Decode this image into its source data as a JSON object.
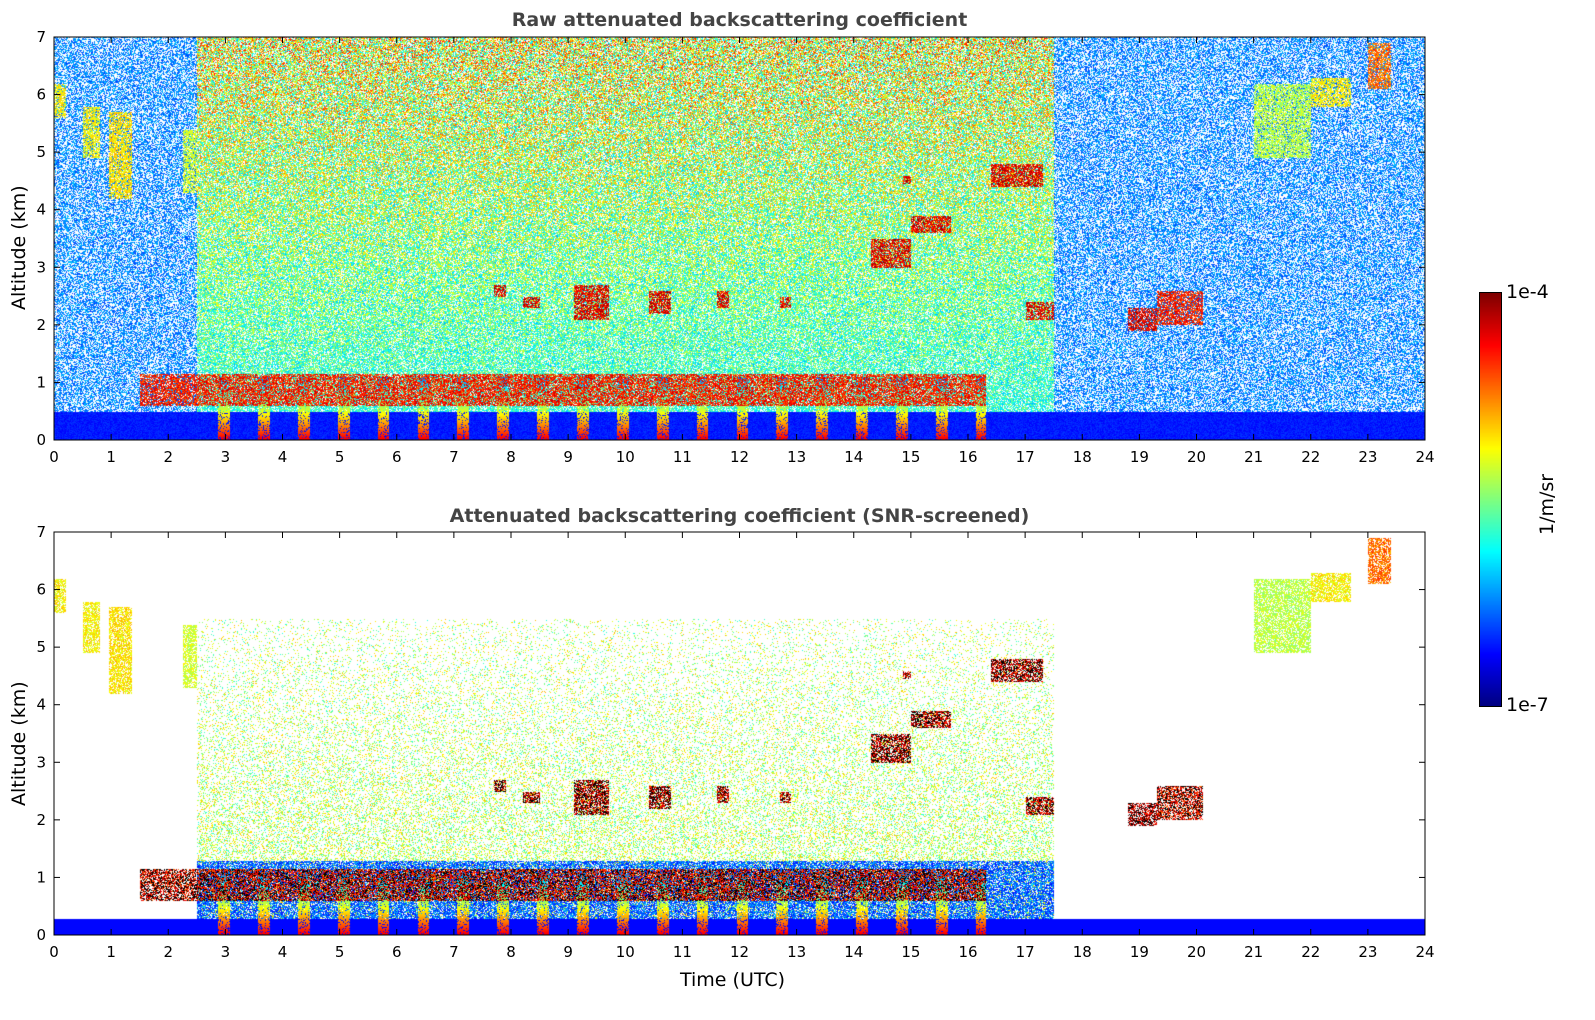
{
  "chart_data": [
    {
      "type": "heatmap",
      "title": "Raw attenuated backscattering coefficient",
      "xlabel": "",
      "ylabel": "Altitude (km)",
      "xlim": [
        0,
        24
      ],
      "ylim": [
        0,
        7
      ],
      "xticks": [
        0,
        1,
        2,
        3,
        4,
        5,
        6,
        7,
        8,
        9,
        10,
        11,
        12,
        13,
        14,
        15,
        16,
        17,
        18,
        19,
        20,
        21,
        22,
        23,
        24
      ],
      "yticks": [
        0,
        1,
        2,
        3,
        4,
        5,
        6,
        7
      ],
      "screened": false
    },
    {
      "type": "heatmap",
      "title": "Attenuated backscattering coefficient (SNR-screened)",
      "xlabel": "Time (UTC)",
      "ylabel": "Altitude (km)",
      "xlim": [
        0,
        24
      ],
      "ylim": [
        0,
        7
      ],
      "xticks": [
        0,
        1,
        2,
        3,
        4,
        5,
        6,
        7,
        8,
        9,
        10,
        11,
        12,
        13,
        14,
        15,
        16,
        17,
        18,
        19,
        20,
        21,
        22,
        23,
        24
      ],
      "yticks": [
        0,
        1,
        2,
        3,
        4,
        5,
        6,
        7
      ],
      "screened": true
    }
  ],
  "cloud_features": [
    {
      "name": "boundary-layer-clouds",
      "t0": 1.5,
      "t1": 16.3,
      "alt0": 0.6,
      "alt1": 1.15,
      "level": 0.95
    },
    {
      "name": "cirrus-early-1",
      "t0": 0.0,
      "t1": 0.2,
      "alt0": 5.6,
      "alt1": 6.2,
      "level": 0.7
    },
    {
      "name": "cirrus-early-2",
      "t0": 0.5,
      "t1": 0.8,
      "alt0": 4.9,
      "alt1": 5.8,
      "level": 0.7
    },
    {
      "name": "cirrus-early-3",
      "t0": 0.95,
      "t1": 1.35,
      "alt0": 4.2,
      "alt1": 5.7,
      "level": 0.72
    },
    {
      "name": "cirrus-early-4",
      "t0": 2.25,
      "t1": 2.5,
      "alt0": 4.3,
      "alt1": 5.4,
      "level": 0.65
    },
    {
      "name": "mid-cloud-1",
      "t0": 7.7,
      "t1": 7.9,
      "alt0": 2.5,
      "alt1": 2.7,
      "level": 1
    },
    {
      "name": "mid-cloud-2",
      "t0": 8.2,
      "t1": 8.5,
      "alt0": 2.3,
      "alt1": 2.5,
      "level": 1
    },
    {
      "name": "mid-cloud-3",
      "t0": 9.1,
      "t1": 9.7,
      "alt0": 2.1,
      "alt1": 2.7,
      "level": 1
    },
    {
      "name": "mid-cloud-4",
      "t0": 10.4,
      "t1": 10.8,
      "alt0": 2.2,
      "alt1": 2.6,
      "level": 1
    },
    {
      "name": "mid-cloud-5",
      "t0": 11.6,
      "t1": 11.8,
      "alt0": 2.3,
      "alt1": 2.6,
      "level": 1
    },
    {
      "name": "mid-cloud-6",
      "t0": 12.7,
      "t1": 12.9,
      "alt0": 2.3,
      "alt1": 2.5,
      "level": 1
    },
    {
      "name": "mid-cloud-7",
      "t0": 14.3,
      "t1": 15.0,
      "alt0": 3.0,
      "alt1": 3.5,
      "level": 1
    },
    {
      "name": "mid-cloud-8",
      "t0": 15.0,
      "t1": 15.7,
      "alt0": 3.6,
      "alt1": 3.9,
      "level": 1
    },
    {
      "name": "mid-cloud-9",
      "t0": 14.85,
      "t1": 15.0,
      "alt0": 4.45,
      "alt1": 4.6,
      "level": 1
    },
    {
      "name": "mid-cloud-10",
      "t0": 16.4,
      "t1": 17.3,
      "alt0": 4.4,
      "alt1": 4.8,
      "level": 1
    },
    {
      "name": "mid-cloud-11",
      "t0": 17.0,
      "t1": 17.5,
      "alt0": 2.1,
      "alt1": 2.4,
      "level": 1
    },
    {
      "name": "mid-cloud-12",
      "t0": 18.8,
      "t1": 19.3,
      "alt0": 1.9,
      "alt1": 2.3,
      "level": 1
    },
    {
      "name": "mid-cloud-13",
      "t0": 19.3,
      "t1": 20.1,
      "alt0": 2.0,
      "alt1": 2.6,
      "level": 0.95
    },
    {
      "name": "cirrus-late-1",
      "t0": 21.0,
      "t1": 22.0,
      "alt0": 4.9,
      "alt1": 6.2,
      "level": 0.62
    },
    {
      "name": "cirrus-late-2",
      "t0": 22.0,
      "t1": 22.7,
      "alt0": 5.8,
      "alt1": 6.3,
      "level": 0.7
    },
    {
      "name": "cirrus-late-3",
      "t0": 23.0,
      "t1": 23.4,
      "alt0": 6.1,
      "alt1": 6.9,
      "level": 0.85
    }
  ],
  "colorbar": {
    "label": "1/m/sr",
    "max_label": "1e-4",
    "min_label": "1e-7",
    "min": 1e-07,
    "max": 0.0001,
    "scale": "log"
  }
}
